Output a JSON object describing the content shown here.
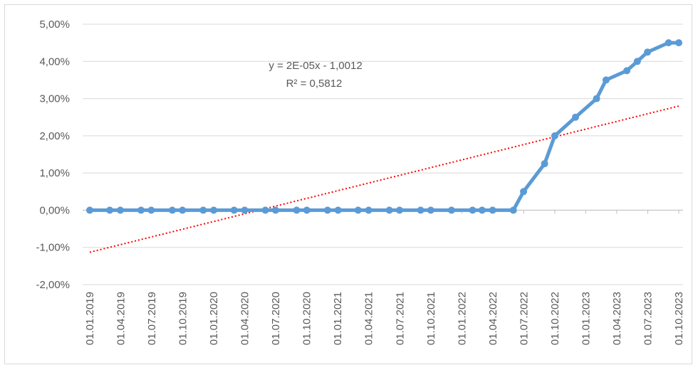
{
  "chart_data": {
    "type": "line",
    "title": "",
    "xlabel": "",
    "ylabel": "",
    "ylim": [
      -0.02,
      0.05
    ],
    "y_ticks": [
      0.05,
      0.04,
      0.03,
      0.02,
      0.01,
      0.0,
      -0.01,
      -0.02
    ],
    "y_tick_labels": [
      "5,00%",
      "4,00%",
      "3,00%",
      "2,00%",
      "1,00%",
      "0,00%",
      "-1,00%",
      "-2,00%"
    ],
    "x_tick_labels": [
      "01.01.2019",
      "01.04.2019",
      "01.07.2019",
      "01.10.2019",
      "01.01.2020",
      "01.04.2020",
      "01.07.2020",
      "01.10.2020",
      "01.01.2021",
      "01.04.2021",
      "01.07.2021",
      "01.10.2021",
      "01.01.2022",
      "01.04.2022",
      "01.07.2022",
      "01.10.2022",
      "01.01.2023",
      "01.04.2023",
      "01.07.2023",
      "01.10.2023"
    ],
    "x_range": [
      "2019-01-01",
      "2023-10-01"
    ],
    "grid": "horizontal",
    "series": [
      {
        "color": "#5B9BD5",
        "points": [
          {
            "x": "2019-01-01",
            "y": 0.0
          },
          {
            "x": "2019-03-01",
            "y": 0.0
          },
          {
            "x": "2019-04-01",
            "y": 0.0
          },
          {
            "x": "2019-06-01",
            "y": 0.0
          },
          {
            "x": "2019-07-01",
            "y": 0.0
          },
          {
            "x": "2019-09-01",
            "y": 0.0
          },
          {
            "x": "2019-10-01",
            "y": 0.0
          },
          {
            "x": "2019-12-01",
            "y": 0.0
          },
          {
            "x": "2020-01-01",
            "y": 0.0
          },
          {
            "x": "2020-03-01",
            "y": 0.0
          },
          {
            "x": "2020-04-01",
            "y": 0.0
          },
          {
            "x": "2020-06-01",
            "y": 0.0
          },
          {
            "x": "2020-07-01",
            "y": 0.0
          },
          {
            "x": "2020-09-01",
            "y": 0.0
          },
          {
            "x": "2020-10-01",
            "y": 0.0
          },
          {
            "x": "2020-12-01",
            "y": 0.0
          },
          {
            "x": "2021-01-01",
            "y": 0.0
          },
          {
            "x": "2021-03-01",
            "y": 0.0
          },
          {
            "x": "2021-04-01",
            "y": 0.0
          },
          {
            "x": "2021-06-01",
            "y": 0.0
          },
          {
            "x": "2021-07-01",
            "y": 0.0
          },
          {
            "x": "2021-09-01",
            "y": 0.0
          },
          {
            "x": "2021-10-01",
            "y": 0.0
          },
          {
            "x": "2021-12-01",
            "y": 0.0
          },
          {
            "x": "2022-02-01",
            "y": 0.0
          },
          {
            "x": "2022-03-01",
            "y": 0.0
          },
          {
            "x": "2022-04-01",
            "y": 0.0
          },
          {
            "x": "2022-06-01",
            "y": 0.0
          },
          {
            "x": "2022-07-01",
            "y": 0.005
          },
          {
            "x": "2022-09-01",
            "y": 0.0125
          },
          {
            "x": "2022-10-01",
            "y": 0.02
          },
          {
            "x": "2022-12-01",
            "y": 0.025
          },
          {
            "x": "2023-02-01",
            "y": 0.03
          },
          {
            "x": "2023-03-01",
            "y": 0.035
          },
          {
            "x": "2023-05-01",
            "y": 0.0375
          },
          {
            "x": "2023-06-01",
            "y": 0.04
          },
          {
            "x": "2023-07-01",
            "y": 0.0425
          },
          {
            "x": "2023-09-01",
            "y": 0.045
          },
          {
            "x": "2023-10-01",
            "y": 0.045
          }
        ]
      }
    ],
    "trendline": {
      "type": "linear",
      "color": "#FF0000",
      "start": {
        "x": "2019-01-01",
        "y": -0.0113
      },
      "end": {
        "x": "2023-10-01",
        "y": 0.028
      }
    },
    "annotations": {
      "equation": "y = 2E-05x  - 1,0012",
      "r_squared": "R² = 0,5812"
    }
  }
}
